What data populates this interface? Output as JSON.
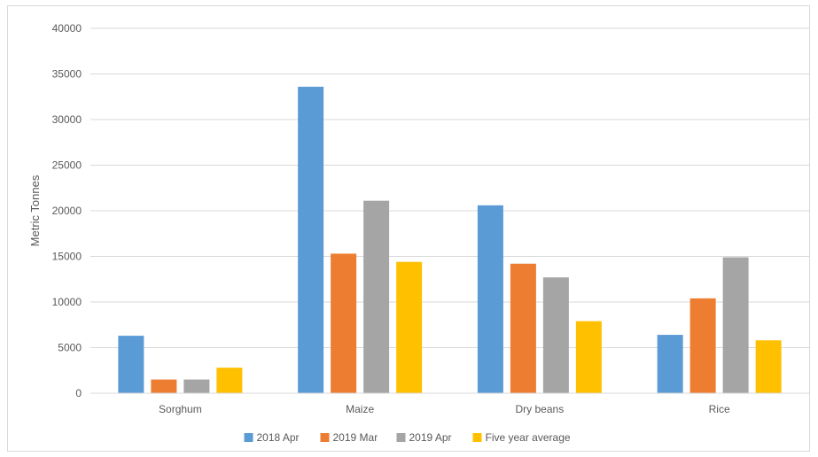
{
  "chart_data": {
    "type": "bar",
    "title": "",
    "xlabel": "",
    "ylabel": "Metric Tonnes",
    "categories": [
      "Sorghum",
      "Maize",
      "Dry beans",
      "Rice"
    ],
    "ylim": [
      0,
      40000
    ],
    "yticks": [
      0,
      5000,
      10000,
      15000,
      20000,
      25000,
      30000,
      35000,
      40000
    ],
    "grid": true,
    "legend_position": "bottom",
    "series": [
      {
        "name": "2018 Apr",
        "color": "#5B9BD5",
        "values": [
          6300,
          33600,
          20600,
          6400
        ]
      },
      {
        "name": "2019 Mar",
        "color": "#ED7D31",
        "values": [
          1500,
          15300,
          14200,
          10400
        ]
      },
      {
        "name": "2019 Apr",
        "color": "#A5A5A5",
        "values": [
          1500,
          21100,
          12700,
          14900
        ]
      },
      {
        "name": "Five year average",
        "color": "#FFC000",
        "values": [
          2800,
          14400,
          7900,
          5800
        ]
      }
    ]
  }
}
